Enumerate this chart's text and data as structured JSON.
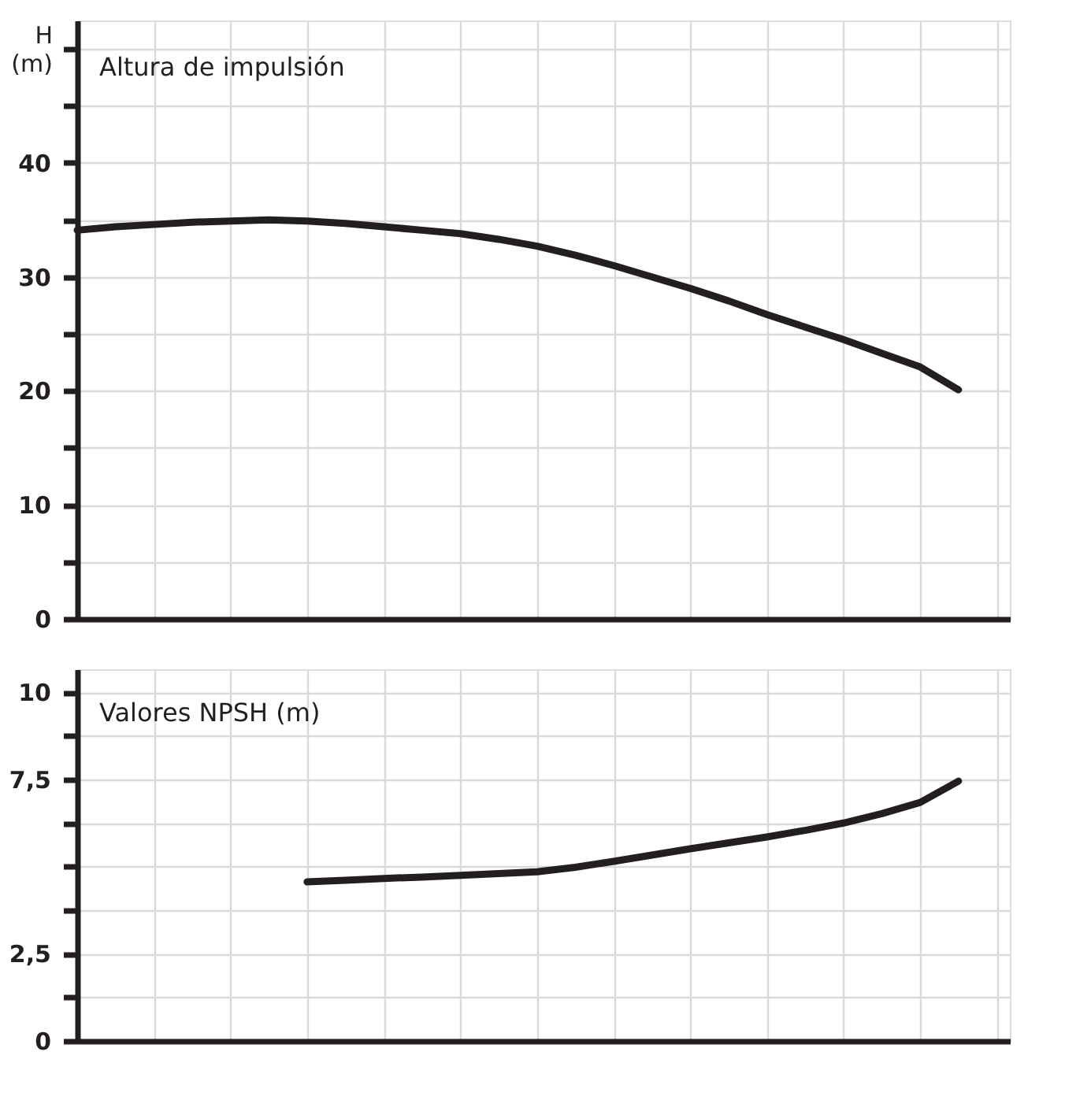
{
  "chart_data": [
    {
      "type": "line",
      "title": "Altura de impulsión",
      "ylabel": "H (m)",
      "categories": [
        null,
        null,
        null,
        null,
        null,
        null,
        null,
        null,
        null,
        null,
        null,
        null,
        null,
        null,
        null,
        null,
        null,
        null,
        null,
        null,
        null,
        null,
        null,
        null
      ],
      "series": [
        {
          "color": "#231f20",
          "values": [
            34.1,
            34.4,
            34.6,
            34.8,
            34.9,
            35.0,
            34.9,
            34.7,
            34.4,
            34.1,
            33.8,
            33.3,
            32.7,
            31.9,
            31.0,
            30.0,
            29.0,
            27.9,
            26.7,
            25.6,
            24.5,
            23.3,
            22.1,
            20.1
          ]
        }
      ],
      "ylim": [
        0,
        52.5
      ],
      "yticks": [
        0,
        {
          "value": 5,
          "label": null
        },
        10,
        {
          "value": 15,
          "label": null
        },
        20,
        {
          "value": 25,
          "label": null
        },
        30,
        {
          "value": 35,
          "label": null
        },
        40,
        {
          "value": 45,
          "label": null
        },
        {
          "value": 50,
          "label": null
        }
      ],
      "grid": true,
      "tick_labels": "y",
      "marker": "none",
      "line_style": "solid"
    },
    {
      "type": "line",
      "title": "Valores NPSH (m)",
      "categories": [
        null,
        null,
        null,
        null,
        null,
        null,
        null,
        null,
        null,
        null,
        null,
        null,
        null,
        null,
        null,
        null,
        null,
        null,
        null,
        null,
        null,
        null,
        null,
        null
      ],
      "series": [
        {
          "color": "#231f20",
          "values": [
            null,
            null,
            null,
            null,
            null,
            null,
            4.56,
            4.61,
            4.66,
            4.7,
            4.75,
            4.8,
            4.85,
            4.98,
            5.15,
            5.33,
            5.51,
            5.68,
            5.85,
            6.04,
            6.25,
            6.52,
            6.84,
            7.45
          ]
        }
      ],
      "ylim": [
        0,
        10.66
      ],
      "yticks": [
        0,
        {
          "value": 1.25,
          "label": null
        },
        {
          "value": 2.5,
          "label": "2,5"
        },
        {
          "value": 3.75,
          "label": null
        },
        {
          "value": 5,
          "label": null
        },
        {
          "value": 6.25,
          "label": null
        },
        {
          "value": 7.5,
          "label": "7,5"
        },
        {
          "value": 8.75,
          "label": null
        },
        10
      ],
      "grid": true,
      "tick_labels": "y",
      "marker": "none",
      "line_style": "solid"
    }
  ]
}
